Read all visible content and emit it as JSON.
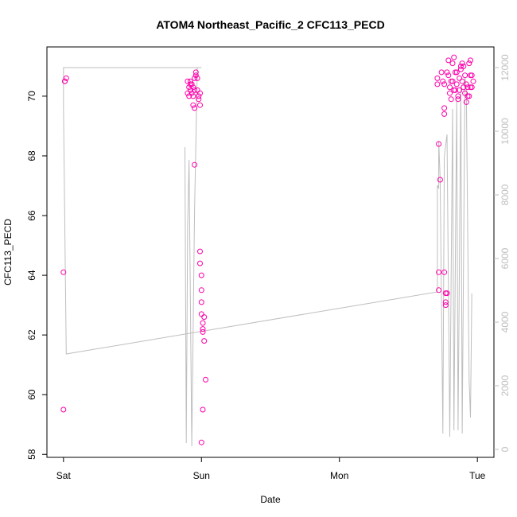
{
  "chart_data": {
    "type": "scatter",
    "title": "ATOM4 Northeast_Pacific_2 CFC113_PECD",
    "xlabel": "Date",
    "ylabel": "CFC113_PECD",
    "x_ticks": [
      {
        "label": "Sat",
        "value": 0
      },
      {
        "label": "Sun",
        "value": 1
      },
      {
        "label": "Mon",
        "value": 2
      },
      {
        "label": "Tue",
        "value": 3
      }
    ],
    "x_unit": "days from Sat 00:00",
    "xlim": [
      -0.12,
      3.12
    ],
    "ylim": [
      57.9,
      71.65
    ],
    "y_ticks": [
      58,
      60,
      62,
      64,
      66,
      68,
      70
    ],
    "y2lim": [
      -250,
      12650
    ],
    "y2_ticks": [
      0,
      2000,
      4000,
      6000,
      8000,
      10000,
      12000
    ],
    "grid": false,
    "series": [
      {
        "role": "points",
        "color": "#ff00aa",
        "points": [
          [
            0.0,
            59.5
          ],
          [
            0.0,
            64.1
          ],
          [
            0.01,
            70.5
          ],
          [
            0.02,
            70.6
          ],
          [
            0.01,
            70.5
          ],
          [
            0.9,
            70.5
          ],
          [
            0.91,
            70.3
          ],
          [
            0.92,
            70.4
          ],
          [
            0.91,
            70.0
          ],
          [
            0.92,
            70.2
          ],
          [
            0.93,
            70.4
          ],
          [
            0.93,
            70.1
          ],
          [
            0.94,
            70.0
          ],
          [
            0.94,
            70.3
          ],
          [
            0.95,
            70.2
          ],
          [
            0.95,
            70.6
          ],
          [
            0.96,
            70.7
          ],
          [
            0.96,
            70.8
          ],
          [
            0.97,
            70.6
          ],
          [
            0.97,
            70.2
          ],
          [
            0.98,
            70.0
          ],
          [
            0.98,
            69.9
          ],
          [
            0.94,
            69.7
          ],
          [
            0.95,
            69.6
          ],
          [
            0.99,
            69.7
          ],
          [
            0.99,
            70.1
          ],
          [
            0.92,
            70.5
          ],
          [
            0.9,
            70.1
          ],
          [
            0.95,
            67.7
          ],
          [
            0.99,
            64.8
          ],
          [
            0.99,
            64.4
          ],
          [
            1.0,
            64.0
          ],
          [
            1.0,
            63.5
          ],
          [
            1.0,
            63.1
          ],
          [
            1.0,
            62.7
          ],
          [
            1.01,
            62.4
          ],
          [
            1.01,
            62.2
          ],
          [
            1.02,
            62.6
          ],
          [
            1.01,
            62.1
          ],
          [
            1.02,
            61.8
          ],
          [
            1.03,
            60.5
          ],
          [
            1.01,
            59.5
          ],
          [
            1.0,
            58.4
          ],
          [
            2.71,
            70.6
          ],
          [
            2.71,
            70.4
          ],
          [
            2.72,
            64.1
          ],
          [
            2.72,
            63.5
          ],
          [
            2.72,
            68.4
          ],
          [
            2.73,
            67.2
          ],
          [
            2.74,
            70.8
          ],
          [
            2.75,
            70.5
          ],
          [
            2.76,
            70.4
          ],
          [
            2.76,
            69.6
          ],
          [
            2.76,
            69.4
          ],
          [
            2.76,
            64.1
          ],
          [
            2.77,
            63.1
          ],
          [
            2.77,
            63.0
          ],
          [
            2.77,
            63.4
          ],
          [
            2.78,
            63.4
          ],
          [
            2.78,
            70.8
          ],
          [
            2.79,
            71.2
          ],
          [
            2.79,
            70.7
          ],
          [
            2.8,
            70.1
          ],
          [
            2.81,
            69.9
          ],
          [
            2.81,
            70.5
          ],
          [
            2.82,
            71.1
          ],
          [
            2.83,
            70.2
          ],
          [
            2.83,
            71.3
          ],
          [
            2.84,
            70.8
          ],
          [
            2.84,
            70.2
          ],
          [
            2.85,
            70.4
          ],
          [
            2.86,
            69.9
          ],
          [
            2.86,
            70.0
          ],
          [
            2.87,
            70.6
          ],
          [
            2.88,
            71.0
          ],
          [
            2.88,
            70.9
          ],
          [
            2.89,
            71.1
          ],
          [
            2.9,
            70.3
          ],
          [
            2.9,
            71.0
          ],
          [
            2.91,
            70.7
          ],
          [
            2.92,
            70.4
          ],
          [
            2.93,
            70.0
          ],
          [
            2.93,
            70.3
          ],
          [
            2.94,
            70.0
          ],
          [
            2.94,
            71.1
          ],
          [
            2.95,
            71.2
          ],
          [
            2.95,
            70.7
          ],
          [
            2.95,
            70.3
          ],
          [
            2.96,
            70.7
          ],
          [
            2.96,
            70.3
          ],
          [
            2.97,
            70.5
          ],
          [
            2.82,
            70.5
          ],
          [
            2.85,
            70.8
          ],
          [
            2.87,
            70.2
          ],
          [
            2.89,
            70.5
          ],
          [
            2.91,
            70.1
          ],
          [
            2.92,
            69.8
          ],
          [
            2.8,
            70.3
          ]
        ]
      },
      {
        "role": "line",
        "axis": "right",
        "color": "#bebebe",
        "points": [
          [
            0.0,
            12000
          ],
          [
            1.0,
            12000
          ],
          [
            0.0,
            12000
          ],
          [
            0.0,
            10800
          ],
          [
            0.02,
            3000
          ],
          [
            2.71,
            4950
          ],
          [
            2.71,
            8300
          ],
          [
            2.72,
            8200
          ],
          [
            2.72,
            9700
          ],
          [
            2.73,
            8500
          ],
          [
            2.75,
            500
          ],
          [
            2.76,
            9200
          ],
          [
            2.78,
            9900
          ],
          [
            2.8,
            400
          ],
          [
            2.82,
            10700
          ],
          [
            2.83,
            600
          ],
          [
            2.85,
            11000
          ],
          [
            2.86,
            600
          ],
          [
            2.88,
            11400
          ],
          [
            2.89,
            500
          ],
          [
            2.91,
            11700
          ],
          [
            2.92,
            11300
          ],
          [
            2.94,
            2200
          ],
          [
            2.95,
            1000
          ],
          [
            2.96,
            4900
          ]
        ]
      },
      {
        "role": "line",
        "axis": "right",
        "color": "#bebebe",
        "points": [
          [
            0.88,
            9500
          ],
          [
            0.89,
            200
          ],
          [
            0.9,
            7000
          ],
          [
            0.91,
            9100
          ],
          [
            0.93,
            100
          ],
          [
            0.95,
            7500
          ],
          [
            0.97,
            12000
          ]
        ]
      }
    ]
  }
}
